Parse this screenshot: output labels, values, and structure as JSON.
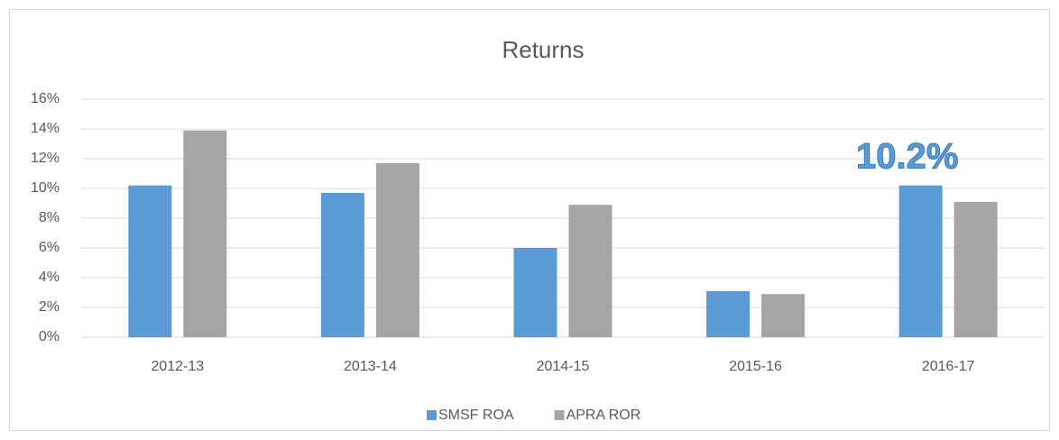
{
  "chart_data": {
    "type": "bar",
    "title": "Returns",
    "categories": [
      "2012-13",
      "2013-14",
      "2014-15",
      "2015-16",
      "2016-17"
    ],
    "series": [
      {
        "name": "SMSF ROA",
        "color": "#5b9bd5",
        "values": [
          10.2,
          9.7,
          6.0,
          3.1,
          10.2
        ],
        "value_labels": [
          null,
          null,
          null,
          null,
          "10.2%"
        ]
      },
      {
        "name": "APRA ROR",
        "color": "#a5a5a5",
        "values": [
          13.9,
          11.7,
          8.9,
          2.9,
          9.1
        ]
      }
    ],
    "ylim": [
      0,
      16
    ],
    "yticks": [
      {
        "value": 0,
        "label": "0%"
      },
      {
        "value": 2,
        "label": "2%"
      },
      {
        "value": 4,
        "label": "4%"
      },
      {
        "value": 6,
        "label": "6%"
      },
      {
        "value": 8,
        "label": "8%"
      },
      {
        "value": 10,
        "label": "10%"
      },
      {
        "value": 12,
        "label": "12%"
      },
      {
        "value": 14,
        "label": "14%"
      },
      {
        "value": 16,
        "label": "16%"
      }
    ],
    "grid": true,
    "legend": "bottom"
  }
}
